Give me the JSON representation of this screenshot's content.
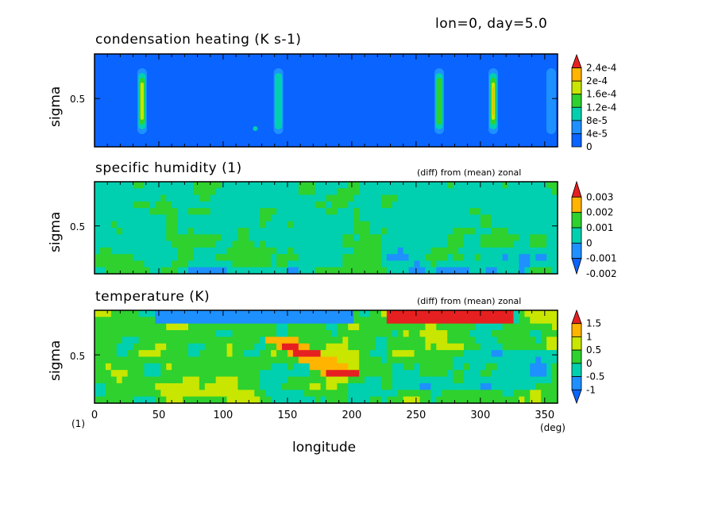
{
  "header": {
    "text": "lon=0, day=5.0"
  },
  "x_unit_left": "(1)",
  "x_unit_right": "(deg)",
  "chart_data": [
    {
      "type": "heatmap",
      "title": "condensation heating (K s-1)",
      "note": "",
      "ylabel": "sigma",
      "yticks": [
        "0.5"
      ],
      "xticks": [
        "0",
        "50",
        "100",
        "150",
        "200",
        "250",
        "300",
        "350"
      ],
      "xlim": [
        0,
        360
      ],
      "colorbar": {
        "labels": [
          "2.4e-4",
          "2e-4",
          "1.6e-4",
          "1.2e-4",
          "8e-5",
          "4e-5",
          "0"
        ],
        "colors": [
          "#0a64ff",
          "#1e90ff",
          "#00d0b0",
          "#2ed12e",
          "#c8e600",
          "#ffb400",
          "#e62020"
        ]
      },
      "columns": [
        {
          "lon": 37,
          "max": 0.00018
        },
        {
          "lon": 143,
          "max": 0.0001
        },
        {
          "lon": 268,
          "max": 0.00016
        },
        {
          "lon": 310,
          "max": 0.00023
        },
        {
          "lon": 355,
          "max": 6e-05
        }
      ]
    },
    {
      "type": "heatmap",
      "title": "specific humidity (1)",
      "note": "(diff) from (mean) zonal",
      "ylabel": "sigma",
      "yticks": [
        "0.5"
      ],
      "xticks": [
        "0",
        "50",
        "100",
        "150",
        "200",
        "250",
        "300",
        "350"
      ],
      "xlim": [
        0,
        360
      ],
      "colorbar": {
        "labels": [
          "0.003",
          "0.002",
          "0.001",
          "0",
          "-0.001",
          "-0.002"
        ],
        "colors": [
          "#0a64ff",
          "#1e90ff",
          "#00d0b0",
          "#2ed12e",
          "#ffb400",
          "#e62020"
        ]
      }
    },
    {
      "type": "heatmap",
      "title": "temperature (K)",
      "note": "(diff) from (mean) zonal",
      "xlabel": "longitude",
      "ylabel": "sigma",
      "yticks": [
        "0.5"
      ],
      "xticks": [
        "0",
        "50",
        "100",
        "150",
        "200",
        "250",
        "300",
        "350"
      ],
      "xlim": [
        0,
        360
      ],
      "colorbar": {
        "labels": [
          "1.5",
          "1",
          "0.5",
          "0",
          "-0.5",
          "-1"
        ],
        "colors": [
          "#0a64ff",
          "#1e90ff",
          "#00d0b0",
          "#2ed12e",
          "#c8e600",
          "#ffb400",
          "#e62020"
        ]
      }
    }
  ]
}
